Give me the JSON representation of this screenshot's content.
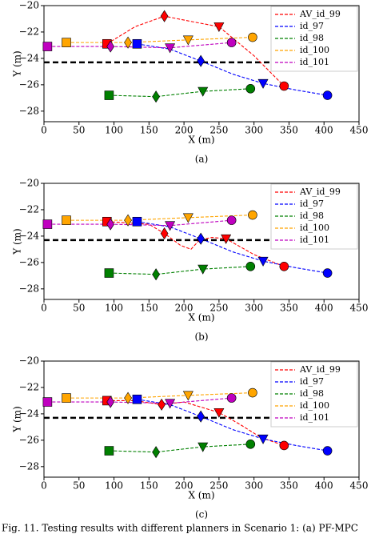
{
  "chart_data": [
    {
      "type": "line",
      "label": "(a)",
      "xlabel": "X (m)",
      "ylabel": "Y (m)",
      "xlim": [
        0,
        450
      ],
      "xticks": [
        0,
        50,
        100,
        150,
        200,
        250,
        300,
        350,
        400,
        450
      ],
      "ylim": [
        -28.8,
        -20
      ],
      "yticks": [
        {
          "value": -20,
          "label": "−20"
        },
        {
          "value": -22,
          "label": "−22"
        },
        {
          "value": -24,
          "label": "−24"
        },
        {
          "value": -26,
          "label": "−26"
        },
        {
          "value": -28,
          "label": "−28"
        }
      ],
      "legend": "upper right",
      "hline": {
        "y": -24.3,
        "xmax": 325,
        "color": "#000000"
      },
      "series": [
        {
          "name": "AV_id_99",
          "color": "#ff0000",
          "x": [
            90,
            130,
            172,
            210,
            250,
            300,
            343
          ],
          "values": [
            -22.9,
            -21.6,
            -20.8,
            -21.2,
            -21.6,
            -23.8,
            -26.1
          ],
          "markers": [
            "s",
            null,
            "D",
            null,
            "v",
            null,
            "o"
          ]
        },
        {
          "name": "id_97",
          "color": "#0000ff",
          "x": [
            133,
            180,
            224,
            270,
            313,
            360,
            405
          ],
          "values": [
            -22.9,
            -23.3,
            -24.2,
            -25.2,
            -25.9,
            -26.4,
            -26.8
          ],
          "markers": [
            "s",
            null,
            "D",
            null,
            "v",
            null,
            "o"
          ]
        },
        {
          "name": "id_98",
          "color": "#008000",
          "x": [
            93,
            160,
            227,
            295
          ],
          "values": [
            -26.8,
            -26.9,
            -26.5,
            -26.3
          ],
          "markers": [
            "s",
            "D",
            "v",
            "o"
          ]
        },
        {
          "name": "id_100",
          "color": "#ffa500",
          "x": [
            32,
            120,
            206,
            298
          ],
          "values": [
            -22.8,
            -22.8,
            -22.6,
            -22.4
          ],
          "markers": [
            "s",
            "D",
            "v",
            "o"
          ]
        },
        {
          "name": "id_101",
          "color": "#bf00bf",
          "x": [
            5,
            95,
            180,
            268
          ],
          "values": [
            -23.1,
            -23.1,
            -23.2,
            -22.8
          ],
          "markers": [
            "s",
            "D",
            "v",
            "o"
          ]
        }
      ]
    },
    {
      "type": "line",
      "label": "(b)",
      "xlabel": "X (m)",
      "ylabel": "Y (m)",
      "xlim": [
        0,
        450
      ],
      "xticks": [
        0,
        50,
        100,
        150,
        200,
        250,
        300,
        350,
        400,
        450
      ],
      "ylim": [
        -28.8,
        -20
      ],
      "yticks": [
        {
          "value": -20,
          "label": "−20"
        },
        {
          "value": -22,
          "label": "−22"
        },
        {
          "value": -24,
          "label": "−24"
        },
        {
          "value": -26,
          "label": "−26"
        },
        {
          "value": -28,
          "label": "−28"
        }
      ],
      "legend": "upper right",
      "hline": {
        "y": -24.3,
        "xmax": 325,
        "color": "#000000"
      },
      "series": [
        {
          "name": "AV_id_99",
          "color": "#ff0000",
          "x": [
            90,
            150,
            172,
            195,
            210,
            222,
            240,
            260,
            300,
            343
          ],
          "values": [
            -22.9,
            -23.1,
            -23.8,
            -24.7,
            -25.0,
            -24.3,
            -24.1,
            -24.2,
            -25.4,
            -26.3
          ],
          "markers": [
            "s",
            null,
            "D",
            null,
            null,
            null,
            null,
            "v",
            null,
            "o"
          ]
        },
        {
          "name": "id_97",
          "color": "#0000ff",
          "x": [
            133,
            180,
            224,
            270,
            313,
            360,
            405
          ],
          "values": [
            -22.9,
            -23.3,
            -24.2,
            -25.2,
            -25.9,
            -26.4,
            -26.8
          ],
          "markers": [
            "s",
            null,
            "D",
            null,
            "v",
            null,
            "o"
          ]
        },
        {
          "name": "id_98",
          "color": "#008000",
          "x": [
            93,
            160,
            227,
            295
          ],
          "values": [
            -26.8,
            -26.9,
            -26.5,
            -26.3
          ],
          "markers": [
            "s",
            "D",
            "v",
            "o"
          ]
        },
        {
          "name": "id_100",
          "color": "#ffa500",
          "x": [
            32,
            120,
            206,
            298
          ],
          "values": [
            -22.8,
            -22.8,
            -22.6,
            -22.4
          ],
          "markers": [
            "s",
            "D",
            "v",
            "o"
          ]
        },
        {
          "name": "id_101",
          "color": "#bf00bf",
          "x": [
            5,
            95,
            180,
            268
          ],
          "values": [
            -23.1,
            -23.1,
            -23.2,
            -22.8
          ],
          "markers": [
            "s",
            "D",
            "v",
            "o"
          ]
        }
      ]
    },
    {
      "type": "line",
      "label": "(c)",
      "xlabel": "X (m)",
      "ylabel": "Y (m)",
      "xlim": [
        0,
        450
      ],
      "xticks": [
        0,
        50,
        100,
        150,
        200,
        250,
        300,
        350,
        400,
        450
      ],
      "ylim": [
        -28.8,
        -20
      ],
      "yticks": [
        {
          "value": -20,
          "label": "−20"
        },
        {
          "value": -22,
          "label": "−22"
        },
        {
          "value": -24,
          "label": "−24"
        },
        {
          "value": -26,
          "label": "−26"
        },
        {
          "value": -28,
          "label": "−28"
        }
      ],
      "legend": "upper right",
      "hline": {
        "y": -24.3,
        "xmax": 325,
        "color": "#000000"
      },
      "series": [
        {
          "name": "AV_id_99",
          "color": "#ff0000",
          "x": [
            90,
            130,
            168,
            200,
            250,
            280,
            310,
            343
          ],
          "values": [
            -23.0,
            -23.0,
            -23.3,
            -23.1,
            -23.9,
            -24.8,
            -25.8,
            -26.4
          ],
          "markers": [
            "s",
            null,
            "D",
            null,
            "v",
            null,
            null,
            "o"
          ]
        },
        {
          "name": "id_97",
          "color": "#0000ff",
          "x": [
            133,
            180,
            224,
            270,
            313,
            360,
            405
          ],
          "values": [
            -22.9,
            -23.3,
            -24.2,
            -25.2,
            -25.9,
            -26.4,
            -26.8
          ],
          "markers": [
            "s",
            null,
            "D",
            null,
            "v",
            null,
            "o"
          ]
        },
        {
          "name": "id_98",
          "color": "#008000",
          "x": [
            93,
            160,
            227,
            295
          ],
          "values": [
            -26.8,
            -26.9,
            -26.5,
            -26.3
          ],
          "markers": [
            "s",
            "D",
            "v",
            "o"
          ]
        },
        {
          "name": "id_100",
          "color": "#ffa500",
          "x": [
            32,
            120,
            206,
            298
          ],
          "values": [
            -22.8,
            -22.8,
            -22.6,
            -22.4
          ],
          "markers": [
            "s",
            "D",
            "v",
            "o"
          ]
        },
        {
          "name": "id_101",
          "color": "#bf00bf",
          "x": [
            5,
            95,
            180,
            268
          ],
          "values": [
            -23.1,
            -23.1,
            -23.2,
            -22.8
          ],
          "markers": [
            "s",
            "D",
            "v",
            "o"
          ]
        }
      ]
    }
  ],
  "caption": "Fig. 11.   Testing results with different planners in Scenario 1: (a) PF-MPC"
}
